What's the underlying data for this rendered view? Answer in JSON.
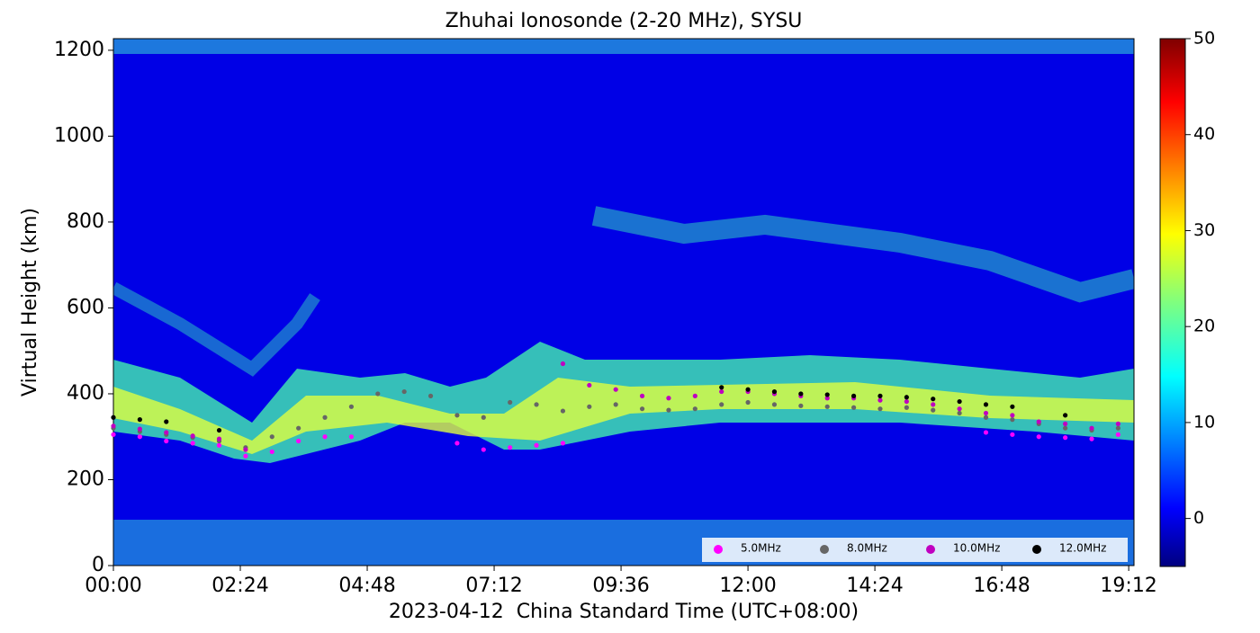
{
  "chart_data": {
    "type": "scatter",
    "title": "Zhuhai Ionosonde (2-20 MHz), SYSU",
    "x_label": "2023-04-12  China Standard Time (UTC+08:00)",
    "y_label": "Virtual Height (km)",
    "x": [
      0,
      0.5,
      1,
      1.5,
      2,
      2.5,
      3,
      3.5,
      4,
      4.5,
      5,
      5.5,
      6,
      6.5,
      7,
      7.5,
      8,
      8.5,
      9,
      9.5,
      10,
      10.5,
      11,
      11.5,
      12,
      12.5,
      13,
      13.5,
      14,
      14.5,
      15,
      15.5,
      16,
      16.5,
      17,
      17.5,
      18,
      18.5,
      19
    ],
    "series": [
      {
        "name": "5.0MHz",
        "color": "#ff00ff",
        "values": [
          305,
          300,
          290,
          285,
          280,
          255,
          265,
          290,
          300,
          300,
          null,
          null,
          null,
          285,
          270,
          275,
          280,
          285,
          null,
          null,
          null,
          null,
          null,
          null,
          null,
          null,
          null,
          null,
          null,
          null,
          null,
          null,
          null,
          310,
          305,
          300,
          298,
          295,
          305
        ]
      },
      {
        "name": "8.0MHz",
        "color": "#666666",
        "values": [
          320,
          312,
          305,
          298,
          290,
          275,
          300,
          320,
          345,
          370,
          400,
          405,
          395,
          350,
          345,
          380,
          375,
          360,
          370,
          375,
          365,
          362,
          365,
          375,
          380,
          375,
          372,
          370,
          368,
          365,
          368,
          362,
          355,
          345,
          340,
          330,
          320,
          315,
          320
        ]
      },
      {
        "name": "10.0MHz",
        "color": "#c000c0",
        "values": [
          325,
          318,
          310,
          302,
          295,
          270,
          null,
          null,
          null,
          null,
          null,
          null,
          null,
          null,
          null,
          null,
          null,
          470,
          420,
          410,
          395,
          390,
          395,
          405,
          405,
          400,
          395,
          390,
          390,
          385,
          382,
          375,
          365,
          355,
          350,
          335,
          330,
          320,
          330
        ]
      },
      {
        "name": "12.0MHz",
        "color": "#000000",
        "values": [
          345,
          340,
          335,
          null,
          315,
          null,
          null,
          null,
          null,
          null,
          null,
          null,
          null,
          null,
          null,
          null,
          null,
          null,
          null,
          null,
          null,
          null,
          null,
          415,
          410,
          405,
          400,
          398,
          395,
          395,
          392,
          388,
          382,
          375,
          370,
          null,
          350,
          null,
          null
        ]
      }
    ],
    "xlim": [
      0,
      19.3
    ],
    "xticks": [
      {
        "value": 0,
        "label": "00:00"
      },
      {
        "value": 2.4,
        "label": "02:24"
      },
      {
        "value": 4.8,
        "label": "04:48"
      },
      {
        "value": 7.2,
        "label": "07:12"
      },
      {
        "value": 9.6,
        "label": "09:36"
      },
      {
        "value": 12,
        "label": "12:00"
      },
      {
        "value": 14.4,
        "label": "14:24"
      },
      {
        "value": 16.8,
        "label": "16:48"
      },
      {
        "value": 19.2,
        "label": "19:12"
      }
    ],
    "ylim": [
      0,
      1227
    ],
    "yticks": [
      0,
      200,
      400,
      600,
      800,
      1000,
      1200
    ],
    "colorbar": {
      "clim": [
        -5,
        50
      ],
      "ticks": [
        0,
        10,
        20,
        30,
        40,
        50
      ]
    },
    "legend": "lower right"
  }
}
